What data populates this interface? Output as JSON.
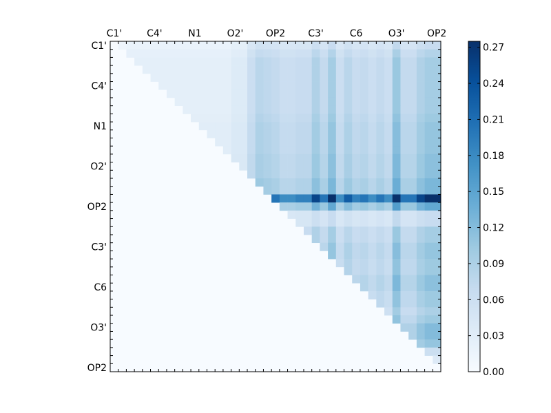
{
  "chart_data": {
    "type": "heatmap",
    "title": "",
    "xlabel": "",
    "ylabel": "",
    "n": 41,
    "x_tick_labels": [
      "C1'",
      "C4'",
      "N1",
      "O2'",
      "OP2",
      "C3'",
      "C6",
      "O3'",
      "OP2"
    ],
    "y_tick_labels": [
      "C1'",
      "C4'",
      "N1",
      "O2'",
      "OP2",
      "C3'",
      "C6",
      "O3'",
      "OP2"
    ],
    "label_positions": [
      0.5,
      5.5,
      10.5,
      15.5,
      20.5,
      25.5,
      30.5,
      35.5,
      40.5
    ],
    "colorbar": {
      "vmin": 0.0,
      "vmax": 0.275,
      "tick_values": [
        0.0,
        0.03,
        0.06,
        0.09,
        0.12,
        0.15,
        0.18,
        0.21,
        0.24,
        0.27
      ],
      "tick_labels": [
        "0.00",
        "0.03",
        "0.06",
        "0.09",
        "0.12",
        "0.15",
        "0.18",
        "0.21",
        "0.24",
        "0.27"
      ]
    },
    "colormap": [
      "#f7fbff",
      "#deebf7",
      "#c6dbef",
      "#9ecae1",
      "#6baed6",
      "#4292c6",
      "#2171b5",
      "#08519c",
      "#08306b"
    ],
    "note_values": "upper-triangular matrix; column profile (cp) and row profile (rp) arrays combine as value = base * cp[col] * rp[row] for col > row",
    "base": 0.11,
    "column_profile": [
      0.2,
      0.2,
      0.3,
      0.3,
      0.3,
      0.3,
      0.3,
      0.3,
      0.3,
      0.3,
      0.3,
      0.3,
      0.3,
      0.3,
      0.3,
      0.4,
      0.4,
      0.7,
      0.9,
      0.85,
      0.8,
      0.7,
      0.7,
      0.75,
      0.75,
      1.0,
      0.8,
      1.1,
      0.7,
      0.9,
      0.75,
      0.8,
      0.7,
      0.8,
      0.7,
      1.2,
      0.8,
      0.8,
      1.0,
      1.1,
      1.1
    ],
    "row_profile": [
      0.55,
      0.7,
      0.8,
      0.8,
      0.8,
      0.8,
      0.8,
      0.8,
      0.8,
      0.85,
      0.9,
      0.9,
      0.9,
      0.9,
      0.95,
      0.95,
      0.95,
      1.05,
      1.05,
      2.3,
      1.2,
      0.55,
      0.55,
      0.8,
      0.8,
      0.9,
      0.9,
      0.85,
      0.85,
      0.95,
      0.95,
      0.85,
      0.85,
      0.75,
      0.85,
      1.0,
      1.0,
      0.9,
      0.5,
      0.3,
      0.2
    ],
    "grid": false,
    "legend": "colorbar right"
  }
}
